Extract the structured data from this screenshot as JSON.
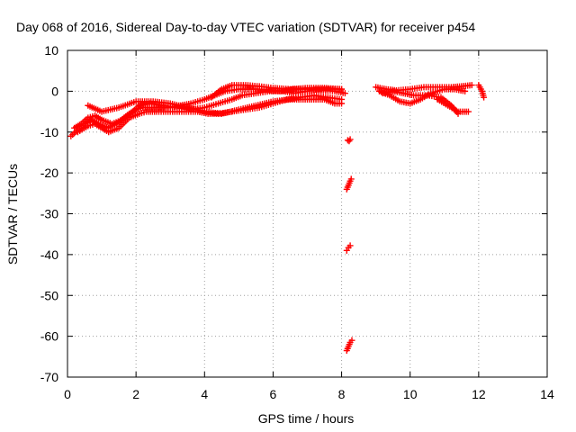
{
  "chart_data": {
    "type": "scatter",
    "title": "Day 068 of 2016, Sidereal Day-to-day VTEC variation (SDTVAR) for receiver p454",
    "xlabel": "GPS time / hours",
    "ylabel": "SDTVAR / TECUs",
    "xlim": [
      0,
      14
    ],
    "ylim": [
      -70,
      10
    ],
    "xticks": [
      "0",
      "2",
      "4",
      "6",
      "8",
      "10",
      "12",
      "14"
    ],
    "yticks": [
      "10",
      "0",
      "-10",
      "-20",
      "-30",
      "-40",
      "-50",
      "-60",
      "-70"
    ],
    "grid": true,
    "marker": "plus",
    "color": "#ff0000",
    "series": [
      {
        "x": [
          0.1,
          0.3,
          0.5,
          0.7,
          0.9,
          1.2,
          1.5,
          1.8,
          2.0,
          2.2,
          2.4,
          2.7,
          3.0,
          3.3,
          3.6,
          4.0,
          4.3,
          4.6,
          5.0,
          5.3,
          5.6,
          6.0,
          6.3,
          6.6,
          7.0,
          7.3,
          7.6,
          8.0
        ],
        "y": [
          -11,
          -9.5,
          -8,
          -7,
          -8,
          -9,
          -7.5,
          -5.5,
          -4.5,
          -4,
          -4,
          -4,
          -4,
          -3.5,
          -3,
          -2,
          -1,
          0,
          0.5,
          0.5,
          0.5,
          0.2,
          0,
          -0.5,
          0,
          0.5,
          0.5,
          0.5
        ]
      },
      {
        "x": [
          0.2,
          0.4,
          0.6,
          0.8,
          1.0,
          1.3,
          1.6,
          1.9,
          2.1,
          2.4,
          2.8,
          3.2,
          3.6,
          4.0,
          4.4,
          4.8,
          5.1,
          5.5,
          5.9,
          6.2,
          6.6,
          7.0,
          7.4,
          7.8,
          8.1
        ],
        "y": [
          -9,
          -8,
          -6.5,
          -6,
          -7,
          -8,
          -7,
          -5,
          -3.5,
          -3,
          -3.5,
          -4,
          -4.5,
          -4,
          -3,
          -2,
          -1,
          -0.5,
          0,
          0,
          0.5,
          0.5,
          0.3,
          0,
          -0.5
        ]
      },
      {
        "x": [
          0.3,
          0.6,
          0.8,
          1.2,
          1.5,
          1.8,
          2.1,
          2.3,
          2.6,
          3.0,
          3.4,
          3.8,
          4.1,
          4.4,
          4.8,
          5.2,
          5.6,
          6.0,
          6.4,
          6.8,
          7.2,
          7.6,
          8.0
        ],
        "y": [
          -10,
          -8.5,
          -8,
          -10,
          -9,
          -6.5,
          -5.5,
          -5,
          -5,
          -5,
          -5,
          -5,
          -5.5,
          -5.5,
          -5,
          -4.5,
          -4,
          -3,
          -2,
          -1.5,
          -1,
          -1.5,
          -2
        ]
      },
      {
        "x": [
          0.6,
          1.0,
          1.5,
          2.0,
          2.5,
          3.0,
          3.5,
          4.0,
          4.5,
          5.0,
          5.5,
          6.0,
          6.5,
          7.0,
          7.5,
          7.8,
          8.0
        ],
        "y": [
          -3.5,
          -5,
          -4,
          -2.5,
          -2.5,
          -3,
          -4,
          -5,
          -5.5,
          -4.5,
          -3.5,
          -2.5,
          -2,
          -2,
          -2,
          -3,
          -3
        ]
      },
      {
        "x": [
          4.2,
          4.5,
          4.8,
          5.2,
          5.6,
          6.0,
          6.5,
          7.0,
          7.5,
          8.0
        ],
        "y": [
          -1.5,
          0.5,
          1.5,
          1.5,
          1.2,
          0.8,
          0.5,
          0.8,
          0.8,
          0.5
        ]
      },
      {
        "x": [
          8.18,
          8.22,
          8.25
        ],
        "y": [
          -12,
          -12.2,
          -11.8
        ]
      },
      {
        "x": [
          8.15,
          8.2,
          8.25,
          8.28
        ],
        "y": [
          -24,
          -23,
          -22,
          -21.5
        ]
      },
      {
        "x": [
          8.15,
          8.2,
          8.25
        ],
        "y": [
          -39,
          -38.3,
          -37.8
        ]
      },
      {
        "x": [
          8.15,
          8.2,
          8.25,
          8.3
        ],
        "y": [
          -63.5,
          -62.5,
          -61.5,
          -61
        ]
      },
      {
        "x": [
          9.0,
          9.3,
          9.6,
          10.0,
          10.4,
          10.8,
          11.2,
          11.5,
          11.8
        ],
        "y": [
          1,
          0.5,
          0.2,
          0.5,
          1,
          1,
          1,
          1.2,
          1.5
        ]
      },
      {
        "x": [
          9.1,
          9.4,
          9.7,
          10.0,
          10.3,
          10.6,
          11.0,
          11.3,
          11.6
        ],
        "y": [
          0,
          -1,
          -2.5,
          -3,
          -2,
          -0.5,
          0.5,
          0.5,
          0
        ]
      },
      {
        "x": [
          9.2,
          9.5,
          9.8,
          10.1,
          10.5,
          10.9,
          11.2,
          11.4
        ],
        "y": [
          -0.5,
          0,
          -0.5,
          -1,
          -1,
          -1.5,
          -3.5,
          -5.5
        ]
      },
      {
        "x": [
          10.8,
          11.1,
          11.4,
          11.7
        ],
        "y": [
          -2,
          -3.5,
          -5,
          -5
        ]
      },
      {
        "x": [
          12.0,
          12.1,
          12.15
        ],
        "y": [
          1.5,
          0,
          -1.5
        ]
      }
    ]
  }
}
